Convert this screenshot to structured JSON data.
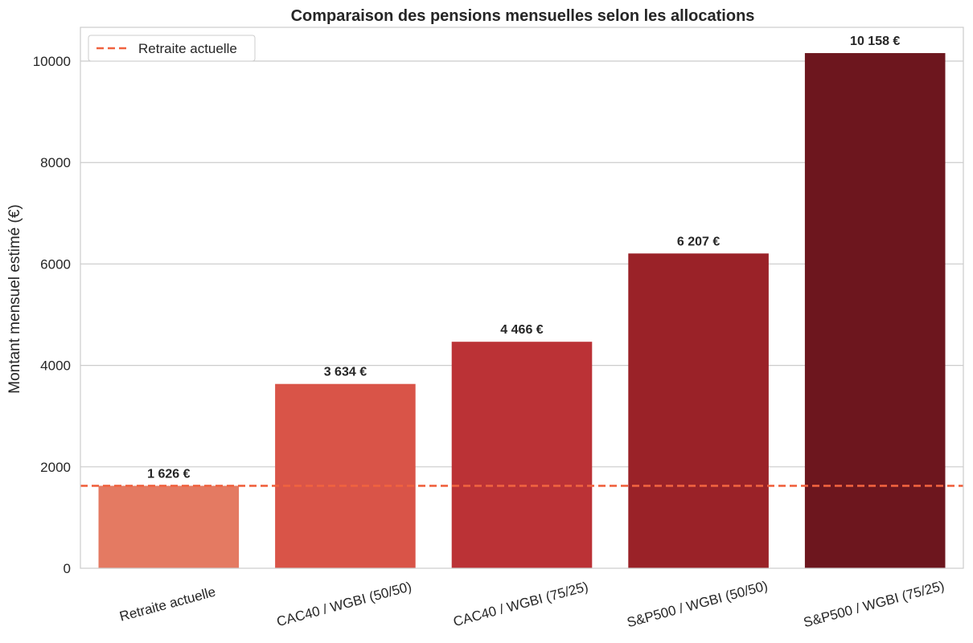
{
  "chart_data": {
    "type": "bar",
    "title": "Comparaison des pensions mensuelles selon les allocations",
    "xlabel": "",
    "ylabel": "Montant mensuel estimé (€)",
    "categories": [
      "Retraite actuelle",
      "CAC40 / WGBI (50/50)",
      "CAC40 / WGBI (75/25)",
      "S&P500 / WGBI (50/50)",
      "S&P500 / WGBI (75/25)"
    ],
    "values": [
      1626,
      3634,
      4466,
      6207,
      10158
    ],
    "data_labels": [
      "1 626 €",
      "3 634 €",
      "4 466 €",
      "6 207 €",
      "10 158 €"
    ],
    "bar_colors": [
      "#e47a62",
      "#d95448",
      "#bb3236",
      "#9a2228",
      "#6d161e"
    ],
    "ylim": [
      0,
      10666
    ],
    "yticks": [
      0,
      2000,
      4000,
      6000,
      8000,
      10000
    ],
    "grid": true,
    "reference_line": {
      "label": "Retraite actuelle",
      "value": 1626,
      "color": "#f0623f",
      "style": "dashed"
    },
    "legend": {
      "position": "top-left",
      "entries": [
        "Retraite actuelle"
      ]
    }
  }
}
